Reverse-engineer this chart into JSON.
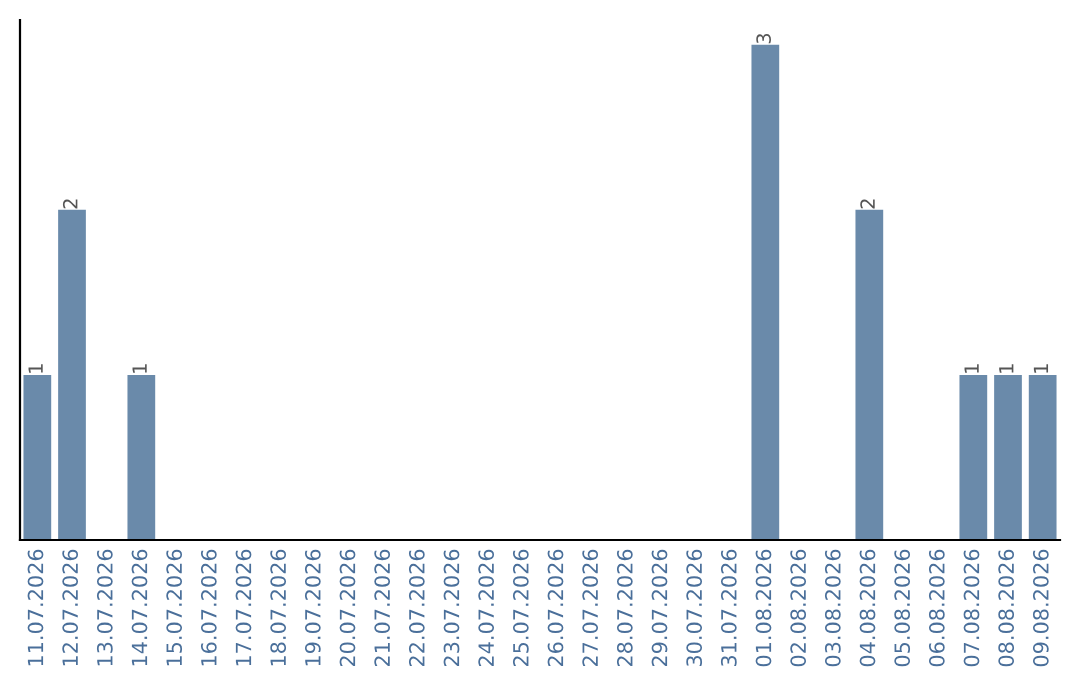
{
  "chart_data": {
    "type": "bar",
    "categories": [
      "11.07.2026",
      "12.07.2026",
      "13.07.2026",
      "14.07.2026",
      "15.07.2026",
      "16.07.2026",
      "17.07.2026",
      "18.07.2026",
      "19.07.2026",
      "20.07.2026",
      "21.07.2026",
      "22.07.2026",
      "23.07.2026",
      "24.07.2026",
      "25.07.2026",
      "26.07.2026",
      "27.07.2026",
      "28.07.2026",
      "29.07.2026",
      "30.07.2026",
      "31.07.2026",
      "01.08.2026",
      "02.08.2026",
      "03.08.2026",
      "04.08.2026",
      "05.08.2026",
      "06.08.2026",
      "07.08.2026",
      "08.08.2026",
      "09.08.2026"
    ],
    "values": [
      1,
      2,
      0,
      1,
      0,
      0,
      0,
      0,
      0,
      0,
      0,
      0,
      0,
      0,
      0,
      0,
      0,
      0,
      0,
      0,
      0,
      3,
      0,
      0,
      2,
      0,
      0,
      1,
      1,
      1
    ],
    "value_labels": [
      "1",
      "2",
      null,
      "1",
      null,
      null,
      null,
      null,
      null,
      null,
      null,
      null,
      null,
      null,
      null,
      null,
      null,
      null,
      null,
      null,
      null,
      "3",
      null,
      null,
      "2",
      null,
      null,
      "1",
      "1",
      "1"
    ],
    "color": "#6a8aaa",
    "tick_labels": "x",
    "grid": false,
    "legend": false
  }
}
